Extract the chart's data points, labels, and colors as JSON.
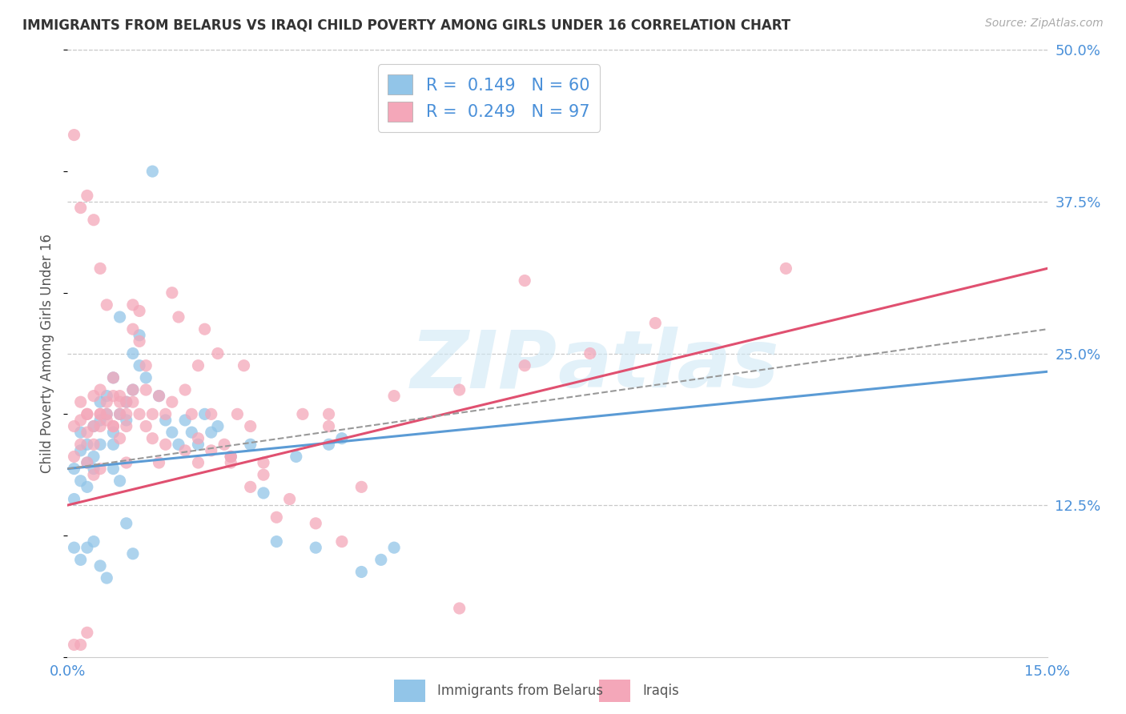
{
  "title": "IMMIGRANTS FROM BELARUS VS IRAQI CHILD POVERTY AMONG GIRLS UNDER 16 CORRELATION CHART",
  "source": "Source: ZipAtlas.com",
  "ylabel": "Child Poverty Among Girls Under 16",
  "x_min": 0.0,
  "x_max": 0.15,
  "y_min": 0.0,
  "y_max": 0.5,
  "x_ticks": [
    0.0,
    0.05,
    0.1,
    0.15
  ],
  "x_tick_labels": [
    "0.0%",
    "",
    "",
    "15.0%"
  ],
  "y_ticks_right": [
    0.125,
    0.25,
    0.375,
    0.5
  ],
  "y_tick_labels_right": [
    "12.5%",
    "25.0%",
    "37.5%",
    "50.0%"
  ],
  "color_blue": "#92C5E8",
  "color_pink": "#F4A7B9",
  "color_blue_line": "#5B9BD5",
  "color_pink_line": "#E05070",
  "color_blue_text": "#4A90D9",
  "grid_color": "#c8c8c8",
  "background": "#ffffff",
  "watermark": "ZIPatlas",
  "blue_R": 0.149,
  "blue_N": 60,
  "pink_R": 0.249,
  "pink_N": 97,
  "blue_scatter_x": [
    0.001,
    0.001,
    0.002,
    0.002,
    0.002,
    0.003,
    0.003,
    0.003,
    0.004,
    0.004,
    0.004,
    0.005,
    0.005,
    0.005,
    0.006,
    0.006,
    0.007,
    0.007,
    0.007,
    0.008,
    0.008,
    0.009,
    0.009,
    0.01,
    0.01,
    0.011,
    0.011,
    0.012,
    0.013,
    0.014,
    0.015,
    0.016,
    0.017,
    0.018,
    0.019,
    0.02,
    0.021,
    0.022,
    0.023,
    0.025,
    0.028,
    0.03,
    0.032,
    0.035,
    0.038,
    0.04,
    0.042,
    0.045,
    0.048,
    0.05,
    0.001,
    0.002,
    0.003,
    0.004,
    0.005,
    0.006,
    0.007,
    0.008,
    0.009,
    0.01
  ],
  "blue_scatter_y": [
    0.155,
    0.13,
    0.17,
    0.145,
    0.185,
    0.16,
    0.14,
    0.175,
    0.155,
    0.19,
    0.165,
    0.175,
    0.21,
    0.195,
    0.215,
    0.2,
    0.185,
    0.175,
    0.23,
    0.2,
    0.28,
    0.21,
    0.195,
    0.22,
    0.25,
    0.24,
    0.265,
    0.23,
    0.4,
    0.215,
    0.195,
    0.185,
    0.175,
    0.195,
    0.185,
    0.175,
    0.2,
    0.185,
    0.19,
    0.165,
    0.175,
    0.135,
    0.095,
    0.165,
    0.09,
    0.175,
    0.18,
    0.07,
    0.08,
    0.09,
    0.09,
    0.08,
    0.09,
    0.095,
    0.075,
    0.065,
    0.155,
    0.145,
    0.11,
    0.085
  ],
  "pink_scatter_x": [
    0.001,
    0.001,
    0.002,
    0.002,
    0.002,
    0.003,
    0.003,
    0.003,
    0.004,
    0.004,
    0.005,
    0.005,
    0.005,
    0.006,
    0.006,
    0.007,
    0.007,
    0.008,
    0.008,
    0.009,
    0.009,
    0.01,
    0.01,
    0.011,
    0.011,
    0.012,
    0.013,
    0.014,
    0.015,
    0.016,
    0.017,
    0.018,
    0.019,
    0.02,
    0.021,
    0.022,
    0.023,
    0.024,
    0.025,
    0.026,
    0.027,
    0.028,
    0.03,
    0.032,
    0.034,
    0.036,
    0.038,
    0.04,
    0.042,
    0.045,
    0.001,
    0.002,
    0.003,
    0.004,
    0.005,
    0.006,
    0.007,
    0.008,
    0.009,
    0.01,
    0.011,
    0.012,
    0.013,
    0.014,
    0.016,
    0.018,
    0.02,
    0.022,
    0.025,
    0.028,
    0.003,
    0.004,
    0.005,
    0.006,
    0.007,
    0.008,
    0.009,
    0.01,
    0.012,
    0.015,
    0.02,
    0.025,
    0.03,
    0.04,
    0.05,
    0.06,
    0.07,
    0.08,
    0.09,
    0.11,
    0.001,
    0.002,
    0.003,
    0.004,
    0.005,
    0.06,
    0.07
  ],
  "pink_scatter_y": [
    0.19,
    0.165,
    0.195,
    0.175,
    0.21,
    0.185,
    0.16,
    0.2,
    0.175,
    0.215,
    0.2,
    0.19,
    0.22,
    0.21,
    0.195,
    0.215,
    0.23,
    0.2,
    0.215,
    0.19,
    0.21,
    0.27,
    0.29,
    0.285,
    0.26,
    0.24,
    0.2,
    0.215,
    0.175,
    0.3,
    0.28,
    0.22,
    0.2,
    0.24,
    0.27,
    0.2,
    0.25,
    0.175,
    0.165,
    0.2,
    0.24,
    0.14,
    0.15,
    0.115,
    0.13,
    0.2,
    0.11,
    0.2,
    0.095,
    0.14,
    0.43,
    0.37,
    0.38,
    0.36,
    0.32,
    0.29,
    0.19,
    0.18,
    0.16,
    0.21,
    0.2,
    0.22,
    0.18,
    0.16,
    0.21,
    0.17,
    0.18,
    0.17,
    0.16,
    0.19,
    0.2,
    0.19,
    0.2,
    0.2,
    0.19,
    0.21,
    0.2,
    0.22,
    0.19,
    0.2,
    0.16,
    0.165,
    0.16,
    0.19,
    0.215,
    0.22,
    0.24,
    0.25,
    0.275,
    0.32,
    0.01,
    0.01,
    0.02,
    0.15,
    0.155,
    0.04,
    0.31
  ]
}
